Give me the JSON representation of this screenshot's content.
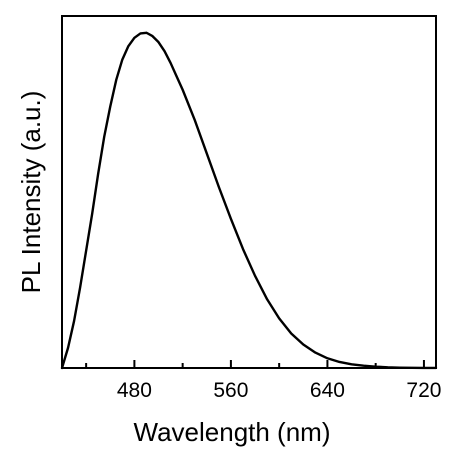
{
  "chart_data": {
    "type": "line",
    "title": "",
    "xlabel": "Wavelength (nm)",
    "ylabel": "PL Intensity (a.u.)",
    "xlim": [
      420,
      730
    ],
    "ylim": [
      0,
      1.05
    ],
    "x_major_ticks": [
      480,
      560,
      640,
      720
    ],
    "x_minor_ticks": [
      440,
      520,
      600,
      680
    ],
    "y_tick_labels": false,
    "grid": false,
    "legend": "none",
    "line_color": "#000000",
    "series": [
      {
        "x": [
          420,
          425,
          430,
          435,
          440,
          445,
          450,
          455,
          460,
          465,
          470,
          475,
          480,
          485,
          490,
          495,
          500,
          505,
          510,
          515,
          520,
          530,
          540,
          550,
          560,
          570,
          580,
          590,
          600,
          610,
          620,
          630,
          640,
          650,
          660,
          670,
          680,
          690,
          700,
          710,
          720,
          730
        ],
        "y": [
          0.0,
          0.06,
          0.14,
          0.24,
          0.35,
          0.46,
          0.58,
          0.69,
          0.78,
          0.86,
          0.92,
          0.96,
          0.985,
          0.998,
          1.0,
          0.99,
          0.972,
          0.945,
          0.91,
          0.87,
          0.83,
          0.74,
          0.64,
          0.54,
          0.445,
          0.355,
          0.275,
          0.205,
          0.148,
          0.103,
          0.07,
          0.046,
          0.029,
          0.018,
          0.011,
          0.007,
          0.004,
          0.002,
          0.001,
          0.0005,
          0.0003,
          0.0002
        ]
      }
    ]
  }
}
